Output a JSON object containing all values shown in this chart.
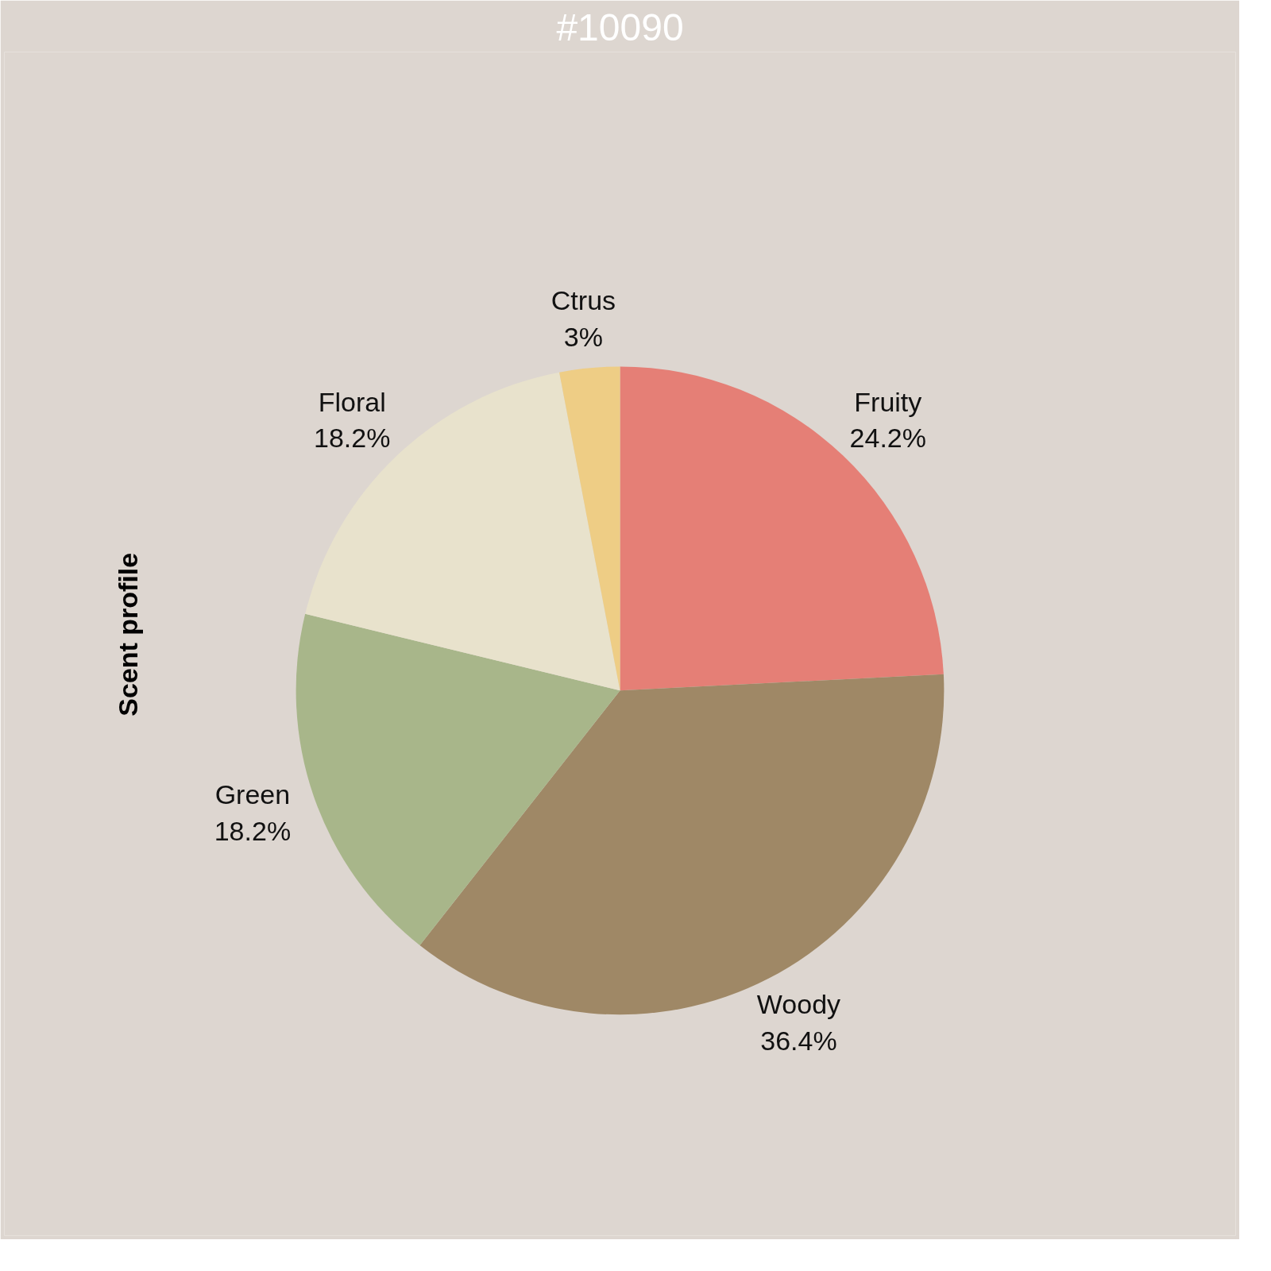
{
  "chart_data": {
    "type": "pie",
    "title": "#10090",
    "ylabel": "Scent profile",
    "categories": [
      "Fruity",
      "Woody",
      "Green",
      "Floral",
      "Ctrus"
    ],
    "values": [
      24.2,
      36.4,
      18.2,
      18.2,
      3
    ],
    "value_labels": [
      "24.2%",
      "36.4%",
      "18.2%",
      "18.2%",
      "3%"
    ],
    "colors": [
      "#e57f76",
      "#9f8866",
      "#a8b68a",
      "#e8e2cc",
      "#eecd85"
    ],
    "legend": false
  }
}
